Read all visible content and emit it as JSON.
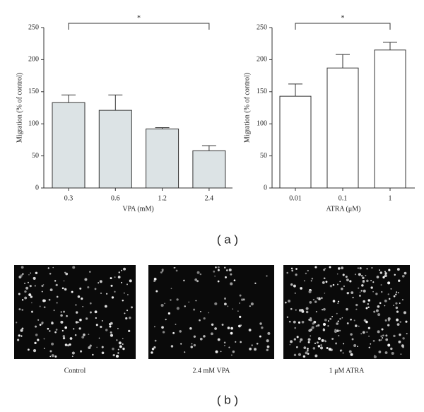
{
  "chart_data": [
    {
      "type": "bar",
      "categories": [
        "0.3",
        "0.6",
        "1.2",
        "2.4"
      ],
      "values": [
        133,
        121,
        92,
        58
      ],
      "errors": [
        12,
        24,
        2,
        8
      ],
      "color": "#dce3e5",
      "ylabel": "Migration (% of control)",
      "xlabel": "VPA (mM)",
      "ylim": [
        0,
        250
      ],
      "yticks": [
        0,
        50,
        100,
        150,
        200,
        250
      ],
      "annotation": "*"
    },
    {
      "type": "bar",
      "categories": [
        "0.01",
        "0.1",
        "1"
      ],
      "values": [
        143,
        187,
        215
      ],
      "errors": [
        19,
        21,
        12
      ],
      "color": "#ffffff",
      "ylabel": "Migration (% of control)",
      "xlabel": "ATRA (μM)",
      "ylim": [
        0,
        250
      ],
      "yticks": [
        0,
        50,
        100,
        150,
        200,
        250
      ],
      "annotation": "*"
    }
  ],
  "figure": {
    "panel_a": "( a )",
    "panel_b": "( b )",
    "images": [
      "Control",
      "2.4 mM VPA",
      "1 μM ATRA"
    ]
  }
}
